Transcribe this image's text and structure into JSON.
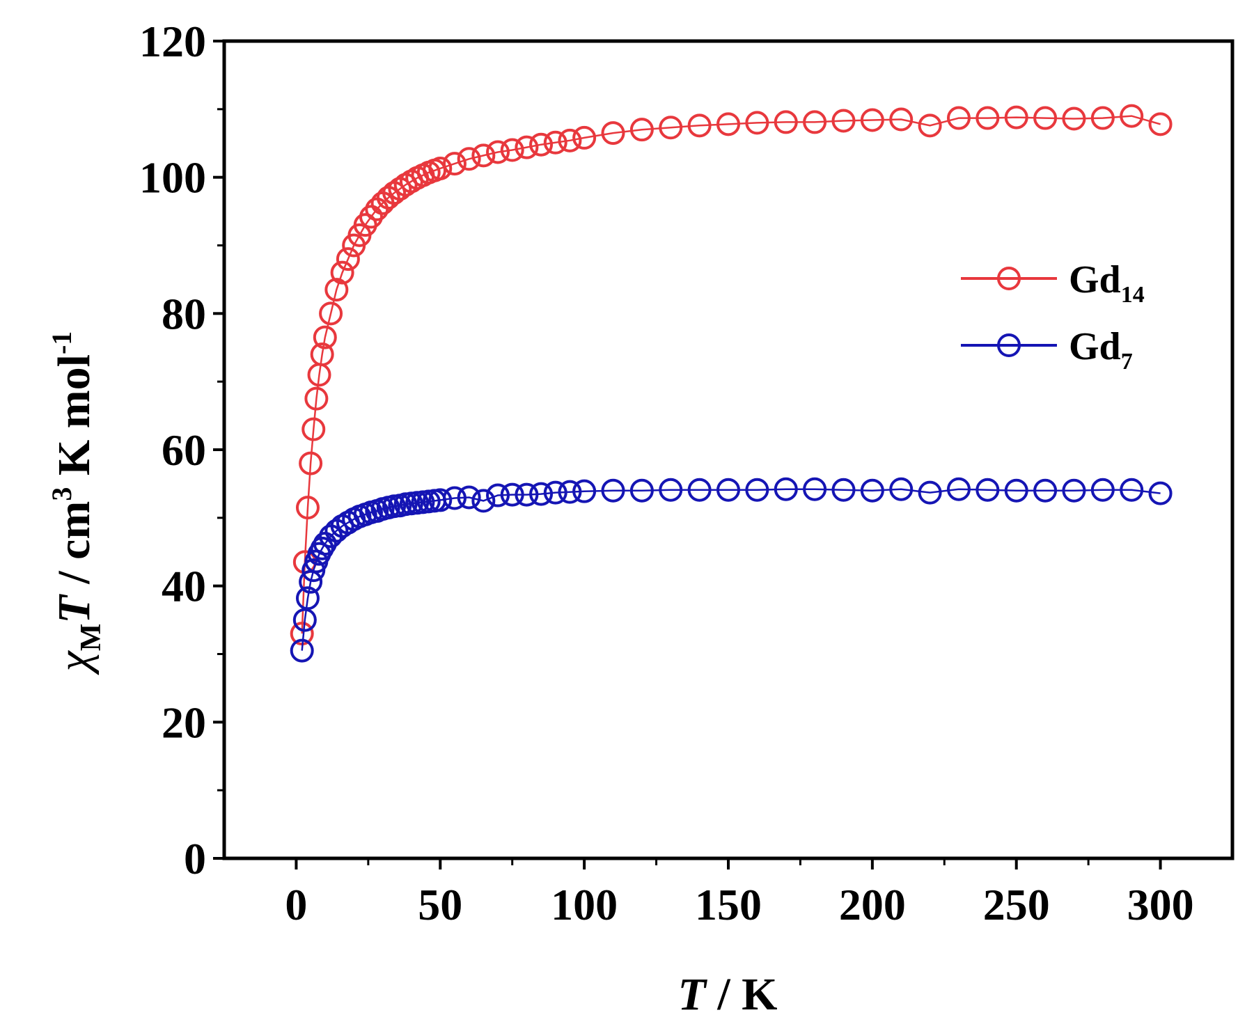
{
  "chart_data": {
    "type": "scatter",
    "xlabel": {
      "italic": "T",
      "rest": " / K"
    },
    "ylabel": {
      "chi": "χ",
      "chi_sub": "M",
      "italic": "T",
      "part1": " / cm",
      "sup1": "3",
      "part2": " K mol",
      "sup2": "-1"
    },
    "xlim": [
      -25,
      325
    ],
    "ylim": [
      0,
      120
    ],
    "xticks": [
      0,
      50,
      100,
      150,
      200,
      250,
      300
    ],
    "yticks": [
      0,
      20,
      40,
      60,
      80,
      100,
      120
    ],
    "xtick_labels": [
      "0",
      "50",
      "100",
      "150",
      "200",
      "250",
      "300"
    ],
    "ytick_labels": [
      "0",
      "20",
      "40",
      "60",
      "80",
      "100",
      "120"
    ],
    "legend_position": "right",
    "grid": false,
    "series": [
      {
        "name": "Gd",
        "name_sub": "14",
        "color": "#e8383d",
        "marker": "open-circle",
        "x": [
          2,
          3,
          4,
          5,
          6,
          7,
          8,
          9,
          10,
          12,
          14,
          16,
          18,
          20,
          22,
          24,
          26,
          28,
          30,
          32,
          34,
          36,
          38,
          40,
          42,
          44,
          46,
          48,
          50,
          55,
          60,
          65,
          70,
          75,
          80,
          85,
          90,
          95,
          100,
          110,
          120,
          130,
          140,
          150,
          160,
          170,
          180,
          190,
          200,
          210,
          220,
          230,
          240,
          250,
          260,
          270,
          280,
          290,
          300
        ],
        "y": [
          33,
          43.5,
          51.5,
          58,
          63,
          67.5,
          71,
          74,
          76.5,
          80,
          83.5,
          86,
          88,
          90,
          91.5,
          93,
          94.2,
          95.3,
          96.2,
          97,
          97.7,
          98.3,
          98.9,
          99.4,
          99.9,
          100.3,
          100.7,
          101,
          101.3,
          102,
          102.7,
          103.2,
          103.7,
          104,
          104.4,
          104.8,
          105.1,
          105.4,
          105.8,
          106.5,
          107,
          107.3,
          107.6,
          107.8,
          108,
          108.1,
          108.1,
          108.3,
          108.4,
          108.5,
          107.6,
          108.7,
          108.7,
          108.8,
          108.7,
          108.6,
          108.7,
          109,
          107.8
        ]
      },
      {
        "name": "Gd",
        "name_sub": "7",
        "color": "#1515b4",
        "marker": "open-circle",
        "x": [
          2,
          3,
          4,
          5,
          6,
          7,
          8,
          9,
          10,
          12,
          14,
          16,
          18,
          20,
          22,
          24,
          26,
          28,
          30,
          32,
          34,
          36,
          38,
          40,
          42,
          44,
          46,
          48,
          50,
          55,
          60,
          65,
          70,
          75,
          80,
          85,
          90,
          95,
          100,
          110,
          120,
          130,
          140,
          150,
          160,
          170,
          180,
          190,
          200,
          210,
          220,
          230,
          240,
          250,
          260,
          270,
          280,
          290,
          300
        ],
        "y": [
          30.5,
          35,
          38.2,
          40.6,
          42.3,
          43.6,
          44.7,
          45.5,
          46.2,
          47.3,
          48.1,
          48.8,
          49.3,
          49.8,
          50.2,
          50.5,
          50.8,
          51,
          51.3,
          51.5,
          51.7,
          51.8,
          52,
          52.1,
          52.2,
          52.3,
          52.4,
          52.5,
          52.6,
          52.9,
          53,
          52.5,
          53.3,
          53.4,
          53.4,
          53.5,
          53.7,
          53.8,
          53.9,
          54,
          54,
          54.1,
          54.1,
          54.1,
          54.1,
          54.2,
          54.2,
          54.1,
          54,
          54.2,
          53.7,
          54.2,
          54.1,
          54,
          54,
          54,
          54.1,
          54.1,
          53.6
        ]
      }
    ]
  }
}
